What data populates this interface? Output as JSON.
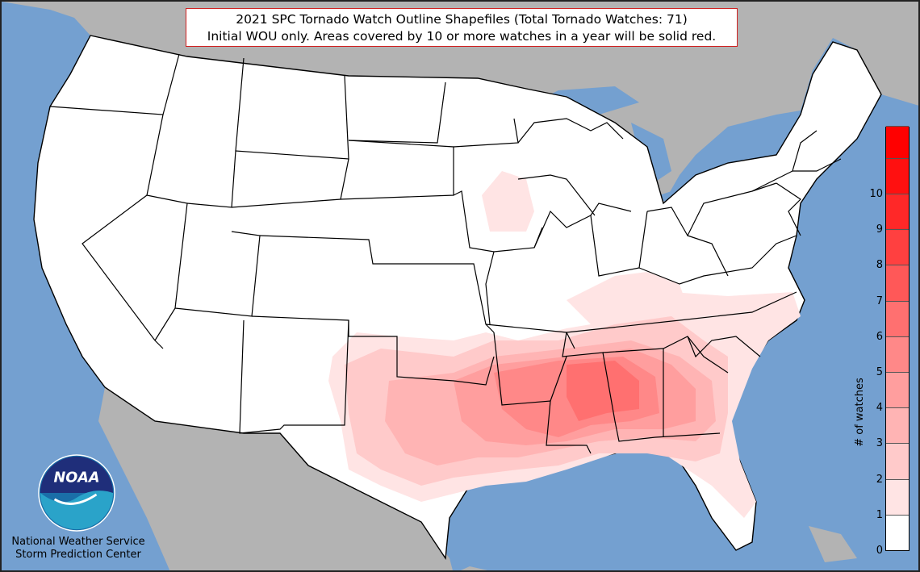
{
  "title": {
    "line1": "2021 SPC Tornado Watch Outline Shapefiles (Total Tornado Watches: 71)",
    "line2": "Initial WOU only. Areas covered by 10 or more watches in a year will be solid red."
  },
  "legend": {
    "label": "# of watches",
    "ticks": [
      "0",
      "1",
      "2",
      "3",
      "4",
      "5",
      "6",
      "7",
      "8",
      "9",
      "10"
    ],
    "colors": [
      "#ffffff",
      "#ffe4e4",
      "#ffcaca",
      "#ffb4b4",
      "#ff9e9e",
      "#ff8888",
      "#ff7070",
      "#ff5858",
      "#ff4040",
      "#ff2828",
      "#ff1010",
      "#ff0000"
    ]
  },
  "logo": {
    "text": "NOAA",
    "icon": "noaa-logo-icon"
  },
  "agency": {
    "line1": "National Weather Service",
    "line2": "Storm Prediction Center"
  },
  "colors": {
    "ocean": "#74a0d0",
    "foreign_land": "#b3b3b3",
    "us_land": "#ffffff",
    "border": "#000000"
  }
}
